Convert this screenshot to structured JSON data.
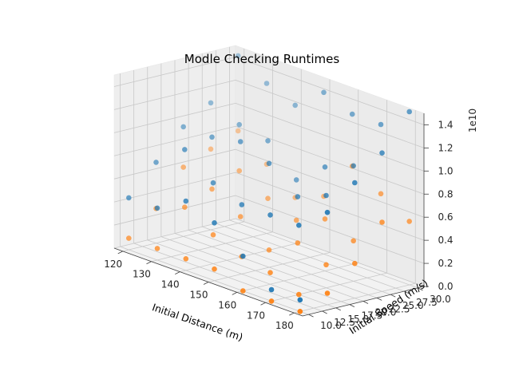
{
  "chart_data": {
    "type": "scatter",
    "title": "Modle Checking Runtimes",
    "xlabel": "Initial Distance (m)",
    "ylabel": "Initial Speed (m/s)",
    "zlabel": "",
    "z_offset_label": "1e10",
    "xlim": [
      117,
      183
    ],
    "ylim": [
      8.9,
      31.1
    ],
    "zlim": [
      0,
      1.5
    ],
    "x_ticks": [
      120,
      130,
      140,
      150,
      160,
      170,
      180
    ],
    "x_tick_labels": [
      "120",
      "130",
      "140",
      "150",
      "160",
      "170",
      "180"
    ],
    "y_ticks": [
      10.0,
      12.5,
      15.0,
      17.5,
      20.0,
      22.5,
      25.0,
      27.5,
      30.0
    ],
    "y_tick_labels": [
      "10.0",
      "12.5",
      "15.0",
      "17.5",
      "20.0",
      "22.5",
      "25.0",
      "27.5",
      "30.0"
    ],
    "z_ticks": [
      0.0,
      0.2,
      0.4,
      0.6,
      0.8,
      1.0,
      1.2,
      1.4
    ],
    "z_tick_labels": [
      "0.0",
      "0.2",
      "0.4",
      "0.6",
      "0.8",
      "1.0",
      "1.2",
      "1.4"
    ],
    "grid": true,
    "series": [
      {
        "color": "#1f77b4",
        "points": [
          [
            120,
            30,
            1.45
          ],
          [
            130,
            30,
            1.3
          ],
          [
            140,
            30,
            1.2
          ],
          [
            150,
            30,
            1.4
          ],
          [
            160,
            30,
            1.3
          ],
          [
            170,
            30,
            1.3
          ],
          [
            180,
            30,
            1.5
          ],
          [
            120,
            25,
            1.1
          ],
          [
            130,
            25,
            1.0
          ],
          [
            140,
            25,
            0.95
          ],
          [
            150,
            25,
            0.7
          ],
          [
            160,
            25,
            0.9
          ],
          [
            170,
            25,
            1.0
          ],
          [
            180,
            25,
            1.2
          ],
          [
            120,
            20,
            0.95
          ],
          [
            130,
            20,
            0.95
          ],
          [
            140,
            20,
            1.0
          ],
          [
            150,
            20,
            0.9
          ],
          [
            160,
            20,
            0.7
          ],
          [
            170,
            20,
            0.8
          ],
          [
            180,
            20,
            1.0
          ],
          [
            120,
            15,
            0.7
          ],
          [
            130,
            15,
            0.9
          ],
          [
            140,
            15,
            0.7
          ],
          [
            150,
            15,
            0.6
          ],
          [
            160,
            15,
            0.6
          ],
          [
            170,
            15,
            0.6
          ],
          [
            180,
            15,
            0.8
          ],
          [
            120,
            10,
            0.45
          ],
          [
            130,
            10,
            0.45
          ],
          [
            140,
            10,
            0.6
          ],
          [
            150,
            10,
            0.5
          ],
          [
            160,
            10,
            0.3
          ],
          [
            170,
            10,
            0.1
          ],
          [
            180,
            10,
            0.1
          ]
        ]
      },
      {
        "color": "#ff7f0e",
        "points": [
          [
            120,
            30,
            0.8
          ],
          [
            130,
            30,
            0.6
          ],
          [
            140,
            30,
            0.4
          ],
          [
            150,
            30,
            0.5
          ],
          [
            160,
            30,
            0.85
          ],
          [
            170,
            30,
            0.7
          ],
          [
            180,
            30,
            0.55
          ],
          [
            120,
            25,
            0.7
          ],
          [
            130,
            25,
            0.6
          ],
          [
            140,
            25,
            0.45
          ],
          [
            150,
            25,
            0.35
          ],
          [
            160,
            25,
            0.45
          ],
          [
            170,
            25,
            0.35
          ],
          [
            180,
            25,
            0.6
          ],
          [
            120,
            20,
            0.6
          ],
          [
            130,
            20,
            0.5
          ],
          [
            140,
            20,
            0.35
          ],
          [
            150,
            20,
            0.15
          ],
          [
            160,
            20,
            0.3
          ],
          [
            170,
            20,
            0.2
          ],
          [
            180,
            20,
            0.3
          ],
          [
            120,
            15,
            0.3
          ],
          [
            130,
            15,
            0.4
          ],
          [
            140,
            15,
            0.25
          ],
          [
            150,
            15,
            0.15
          ],
          [
            160,
            15,
            0.1
          ],
          [
            170,
            15,
            0.0
          ],
          [
            180,
            15,
            0.1
          ],
          [
            120,
            10,
            0.1
          ],
          [
            130,
            10,
            0.1
          ],
          [
            140,
            10,
            0.1
          ],
          [
            150,
            10,
            0.1
          ],
          [
            160,
            10,
            0.0
          ],
          [
            170,
            10,
            0.0
          ],
          [
            180,
            10,
            0.0
          ]
        ]
      }
    ]
  }
}
